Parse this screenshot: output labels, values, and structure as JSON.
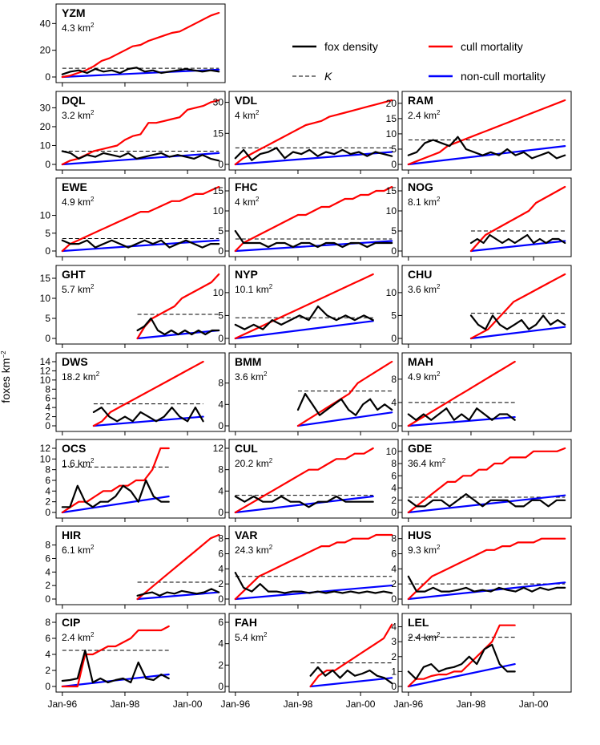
{
  "chart_data": {
    "type": "line",
    "ylabel": "foxes km",
    "ylabel_sup": "−2",
    "x_ticks": [
      "Jan-96",
      "Jan-98",
      "Jan-00"
    ],
    "legend": [
      {
        "name": "fox density",
        "color": "#000000",
        "style": "solid"
      },
      {
        "name": "cull mortality",
        "color": "#ff0000",
        "style": "solid"
      },
      {
        "name": "K",
        "color": "#000000",
        "style": "dashed"
      },
      {
        "name": "non-cull mortality",
        "color": "#0000ff",
        "style": "solid"
      }
    ],
    "panels": [
      {
        "site": "YZM",
        "area": "4.3 km",
        "yticks": [
          0,
          20,
          40
        ],
        "ymax": 48,
        "K": 6.5,
        "xs": 1996.0,
        "xe": 2001.0,
        "cull_end": 48,
        "noncull_end": 5.5,
        "density": [
          2,
          4,
          5,
          3,
          6,
          4,
          5,
          3,
          6,
          7,
          4,
          5,
          3,
          4,
          5,
          6,
          5,
          4,
          5,
          4
        ],
        "cull_steps": [
          0,
          1,
          3,
          5,
          8,
          12,
          14,
          17,
          20,
          23,
          24,
          27,
          29,
          31,
          33,
          34,
          37,
          40,
          43,
          46,
          48
        ]
      },
      {
        "site": "DQL",
        "area": "3.2 km",
        "yticks": [
          0,
          10,
          20,
          30
        ],
        "ymax": 34,
        "K": 7,
        "xs": 1996.0,
        "xe": 2001.0,
        "cull_end": 34,
        "noncull_end": 6,
        "density": [
          7,
          6,
          3,
          5,
          4,
          6,
          5,
          4,
          6,
          3,
          4,
          5,
          6,
          4,
          5,
          4,
          3,
          5,
          3,
          2
        ],
        "cull_steps": [
          0,
          2,
          3,
          5,
          7,
          8,
          9,
          10,
          13,
          15,
          16,
          22,
          22,
          23,
          24,
          25,
          29,
          30,
          31,
          33,
          34
        ]
      },
      {
        "site": "VDL",
        "area": "4 km",
        "yticks": [
          0,
          15,
          30
        ],
        "ymax": 31,
        "K": 8,
        "xs": 1996.0,
        "xe": 2001.0,
        "cull_end": 31,
        "noncull_end": 6,
        "density": [
          3,
          7,
          2,
          5,
          6,
          8,
          3,
          6,
          5,
          7,
          4,
          6,
          5,
          7,
          5,
          6,
          4,
          6,
          5,
          4
        ],
        "cull_steps": [
          0,
          3,
          5,
          7,
          9,
          11,
          13,
          15,
          17,
          19,
          20,
          21,
          23,
          24,
          25,
          26,
          27,
          28,
          29,
          30,
          31
        ]
      },
      {
        "site": "RAM",
        "area": "2.4 km",
        "yticks": [
          0,
          5,
          10,
          15,
          20
        ],
        "ymax": 21,
        "K": 8,
        "xs": 1996.0,
        "xe": 2001.0,
        "cull_end": 21,
        "noncull_end": 6,
        "density": [
          3,
          4,
          7,
          8,
          7,
          6,
          9,
          5,
          4,
          3,
          4,
          3,
          5,
          3,
          4,
          2,
          3,
          4,
          2,
          3
        ],
        "cull_steps": [
          0,
          1,
          2,
          3,
          4,
          6,
          7,
          8,
          9,
          10,
          11,
          12,
          13,
          14,
          15,
          16,
          17,
          18,
          19,
          20,
          21
        ]
      },
      {
        "site": "EWE",
        "area": "4.9 km",
        "yticks": [
          0,
          5,
          10
        ],
        "ymax": 18,
        "K": 3.5,
        "xs": 1996.0,
        "xe": 2001.0,
        "cull_end": 18,
        "noncull_end": 3,
        "density": [
          3,
          2,
          2,
          3,
          1,
          2,
          3,
          2,
          1,
          2,
          3,
          2,
          3,
          1,
          2,
          3,
          2,
          1,
          2,
          2
        ],
        "cull_steps": [
          0,
          2,
          3,
          4,
          5,
          6,
          7,
          8,
          9,
          10,
          11,
          11,
          12,
          13,
          14,
          14,
          15,
          16,
          16,
          17,
          18
        ]
      },
      {
        "site": "FHC",
        "area": "4 km",
        "yticks": [
          0,
          5,
          10,
          15
        ],
        "ymax": 16,
        "K": 3,
        "xs": 1996.0,
        "xe": 2001.0,
        "cull_end": 16,
        "noncull_end": 2.5,
        "density": [
          5,
          2,
          2,
          2,
          1,
          2,
          2,
          1,
          2,
          2,
          1,
          2,
          2,
          1,
          2,
          2,
          1,
          2,
          2,
          2
        ],
        "cull_steps": [
          0,
          2,
          3,
          4,
          5,
          6,
          7,
          8,
          9,
          9,
          10,
          11,
          11,
          12,
          13,
          13,
          14,
          14,
          15,
          15,
          16
        ]
      },
      {
        "site": "NOG",
        "area": "8.1 km",
        "yticks": [
          0,
          5,
          10,
          15
        ],
        "ymax": 16,
        "K": 5,
        "xs": 1998.0,
        "xe": 2001.0,
        "cull_end": 16,
        "noncull_end": 2.5,
        "density": [
          2,
          3,
          2,
          4,
          3,
          2,
          3,
          2,
          3,
          4,
          2,
          3,
          2,
          3,
          3,
          2
        ],
        "cull_steps": [
          0,
          2,
          4,
          5,
          6,
          7,
          8,
          9,
          10,
          12,
          13,
          14,
          15,
          16
        ]
      },
      {
        "site": "GHT",
        "area": "5.7 km",
        "yticks": [
          0,
          5,
          10,
          15
        ],
        "ymax": 16,
        "K": 6,
        "xs": 1998.4,
        "xe": 2001.0,
        "cull_end": 16,
        "noncull_end": 2,
        "density": [
          2,
          3,
          5,
          2,
          1,
          2,
          1,
          2,
          1,
          2,
          1,
          2,
          2
        ],
        "cull_steps": [
          0,
          3,
          5,
          6,
          7,
          8,
          10,
          11,
          12,
          13,
          14,
          16
        ]
      },
      {
        "site": "NYP",
        "area": "10.1 km",
        "yticks": [
          0,
          5,
          10
        ],
        "ymax": 14,
        "K": 4.5,
        "xs": 1996.0,
        "xe": 2000.4,
        "cull_end": 14,
        "noncull_end": 3.8,
        "density": [
          3,
          2,
          3,
          2,
          4,
          3,
          4,
          5,
          4,
          7,
          5,
          4,
          5,
          4,
          5,
          4
        ],
        "cull_steps": [
          0,
          1,
          2,
          3,
          4,
          5,
          6,
          7,
          8,
          9,
          10,
          11,
          12,
          13,
          14
        ]
      },
      {
        "site": "CHU",
        "area": "3.6 km",
        "yticks": [
          0,
          5,
          10
        ],
        "ymax": 14,
        "K": 5.5,
        "xs": 1998.0,
        "xe": 2001.0,
        "cull_end": 14,
        "noncull_end": 2.5,
        "density": [
          5,
          3,
          2,
          5,
          3,
          2,
          3,
          4,
          2,
          3,
          5,
          3,
          4,
          3
        ],
        "cull_steps": [
          0,
          1,
          2,
          4,
          6,
          8,
          9,
          10,
          11,
          12,
          13,
          14
        ]
      },
      {
        "site": "DWS",
        "area": "18.2 km",
        "yticks": [
          0,
          2,
          4,
          6,
          8,
          10,
          12,
          14
        ],
        "ymax": 14,
        "K": 4.8,
        "xs": 1997.0,
        "xe": 2000.5,
        "cull_end": 14,
        "noncull_end": 2,
        "density": [
          3,
          4,
          2,
          1,
          2,
          1,
          3,
          2,
          1,
          2,
          4,
          2,
          1,
          4,
          1
        ],
        "cull_steps": [
          0,
          1,
          3,
          4,
          5,
          6,
          7,
          8,
          9,
          10,
          11,
          12,
          13,
          14
        ]
      },
      {
        "site": "BMM",
        "area": "3.6 km",
        "yticks": [
          0,
          4,
          8
        ],
        "ymax": 12,
        "K": 6.5,
        "xs": 1998.0,
        "xe": 2001.0,
        "cull_end": 12,
        "noncull_end": 2.5,
        "density": [
          3,
          6,
          4,
          2,
          3,
          4,
          5,
          3,
          2,
          4,
          5,
          3,
          4,
          3
        ],
        "cull_steps": [
          0,
          1,
          2,
          3,
          4,
          5,
          6,
          8,
          9,
          10,
          11,
          12
        ]
      },
      {
        "site": "MAH",
        "area": "4.9 km",
        "yticks": [
          0,
          4,
          8
        ],
        "ymax": 11,
        "K": 4,
        "xs": 1996.0,
        "xe": 1999.4,
        "cull_end": 11,
        "noncull_end": 1.5,
        "density": [
          2,
          1,
          2,
          1,
          2,
          3,
          1,
          2,
          1,
          3,
          2,
          1,
          2,
          2,
          1
        ],
        "cull_steps": [
          0,
          1,
          2,
          3,
          4,
          5,
          6,
          7,
          8,
          9,
          10,
          11
        ]
      },
      {
        "site": "OCS",
        "area": "1.6 km",
        "yticks": [
          0,
          2,
          4,
          6,
          8,
          10,
          12
        ],
        "ymax": 12,
        "K": 8.5,
        "xs": 1996.0,
        "xe": 1999.4,
        "cull_end": 12,
        "noncull_end": 3,
        "density": [
          1,
          1,
          5,
          2,
          1,
          2,
          2,
          3,
          5,
          4,
          2,
          6,
          3,
          2,
          2
        ],
        "cull_steps": [
          0,
          1,
          2,
          2,
          3,
          4,
          4,
          5,
          5,
          6,
          6,
          8,
          12,
          12
        ]
      },
      {
        "site": "CUL",
        "area": "20.2 km",
        "yticks": [
          0,
          4,
          8,
          12
        ],
        "ymax": 12,
        "K": 3.2,
        "xs": 1996.0,
        "xe": 2000.4,
        "cull_end": 12,
        "noncull_end": 3,
        "density": [
          3,
          2,
          3,
          2,
          2,
          3,
          2,
          2,
          1,
          2,
          2,
          3,
          2,
          2,
          2,
          2
        ],
        "cull_steps": [
          0,
          1,
          2,
          3,
          4,
          5,
          6,
          7,
          8,
          8,
          9,
          10,
          10,
          11,
          11,
          12
        ]
      },
      {
        "site": "GDE",
        "area": "36.4 km",
        "yticks": [
          0,
          2,
          4,
          6,
          8,
          10
        ],
        "ymax": 10.5,
        "K": 2.5,
        "xs": 1996.0,
        "xe": 2001.0,
        "cull_end": 10.5,
        "noncull_end": 2.8,
        "density": [
          2,
          1,
          1,
          2,
          2,
          1,
          2,
          3,
          2,
          1,
          2,
          2,
          2,
          1,
          1,
          2,
          2,
          1,
          2,
          2
        ],
        "cull_steps": [
          0,
          1,
          2,
          3,
          4,
          5,
          5,
          6,
          6,
          7,
          7,
          8,
          8,
          9,
          9,
          9,
          10,
          10,
          10,
          10,
          10.5
        ]
      },
      {
        "site": "HIR",
        "area": "6.1 km",
        "yticks": [
          0,
          2,
          4,
          6,
          8
        ],
        "ymax": 9.5,
        "K": 2.5,
        "xs": 1998.4,
        "xe": 2001.0,
        "cull_end": 9.5,
        "noncull_end": 1,
        "density": [
          0.5,
          0.8,
          1,
          0.5,
          1,
          0.8,
          1.2,
          1,
          0.8,
          1,
          1.5,
          1
        ],
        "cull_steps": [
          0,
          1,
          2,
          3,
          4,
          5,
          6,
          7,
          8,
          9,
          9.5
        ]
      },
      {
        "site": "VAR",
        "area": "24.3 km",
        "yticks": [
          0,
          2,
          4,
          6,
          8
        ],
        "ymax": 8.5,
        "K": 3,
        "xs": 1996.0,
        "xe": 2001.0,
        "cull_end": 8.5,
        "noncull_end": 1.8,
        "density": [
          3.5,
          1.5,
          1,
          2,
          1,
          1,
          0.8,
          1,
          1,
          0.8,
          1,
          0.8,
          1,
          0.8,
          1,
          0.8,
          1,
          0.8,
          1,
          0.8
        ],
        "cull_steps": [
          0,
          1,
          2,
          3,
          3.5,
          4,
          4.5,
          5,
          5.5,
          6,
          6.5,
          7,
          7,
          7.5,
          7.5,
          8,
          8,
          8,
          8.5,
          8.5,
          8.5
        ]
      },
      {
        "site": "HUS",
        "area": "9.3 km",
        "yticks": [
          0,
          2,
          4,
          6,
          8
        ],
        "ymax": 8.5,
        "K": 2,
        "xs": 1996.0,
        "xe": 2001.0,
        "cull_end": 8,
        "noncull_end": 2.2,
        "density": [
          3,
          1,
          1,
          1.5,
          1,
          1,
          1.2,
          1.5,
          1,
          1.2,
          1,
          1.5,
          1.2,
          1,
          1.5,
          1,
          1.5,
          1.2,
          1.5,
          1.5
        ],
        "cull_steps": [
          0,
          1,
          2,
          3,
          3.5,
          4,
          4.5,
          5,
          5.5,
          6,
          6.5,
          6.5,
          7,
          7,
          7.5,
          7.5,
          7.5,
          8,
          8,
          8,
          8
        ]
      },
      {
        "site": "CIP",
        "area": "2.4 km",
        "yticks": [
          0,
          2,
          4,
          6,
          8
        ],
        "ymax": 8,
        "K": 4.5,
        "xs": 1996.0,
        "xe": 1999.4,
        "cull_end": 7.5,
        "noncull_end": 1.5,
        "density": [
          0.7,
          0.8,
          1,
          4.5,
          0.5,
          1,
          0.5,
          0.8,
          1,
          0.5,
          3,
          1,
          0.8,
          1.5,
          1
        ],
        "cull_steps": [
          0,
          0,
          0,
          4,
          4,
          4.5,
          5,
          5,
          5.5,
          6,
          7,
          7,
          7,
          7,
          7.5
        ]
      },
      {
        "site": "FAH",
        "area": "5.4 km",
        "yticks": [
          0,
          2,
          4,
          6
        ],
        "ymax": 6,
        "K": 2.2,
        "xs": 1998.4,
        "xe": 2001.0,
        "cull_end": 5.8,
        "noncull_end": 0.8,
        "density": [
          1,
          1.8,
          1,
          1.5,
          0.8,
          1.5,
          1,
          1.2,
          1.5,
          1,
          0.8,
          0.3
        ],
        "cull_steps": [
          0,
          1,
          1.5,
          1.5,
          2,
          2.5,
          3,
          3.5,
          4,
          4.5,
          5.8
        ]
      },
      {
        "site": "LEL",
        "area": "2.4 km",
        "yticks": [
          0,
          1,
          2,
          3,
          4
        ],
        "ymax": 4.3,
        "K": 3.3,
        "xs": 1996.0,
        "xe": 1999.4,
        "cull_end": 4.1,
        "noncull_end": 1.5,
        "density": [
          1,
          0.5,
          1.3,
          1.5,
          1,
          1.2,
          1.3,
          1.5,
          2,
          1.5,
          2.5,
          2.8,
          1.5,
          1,
          1
        ],
        "cull_steps": [
          0,
          0.5,
          0.5,
          0.7,
          0.8,
          0.8,
          1,
          1,
          1.5,
          2,
          2.5,
          3,
          4.1,
          4.1,
          4.1
        ]
      }
    ]
  }
}
